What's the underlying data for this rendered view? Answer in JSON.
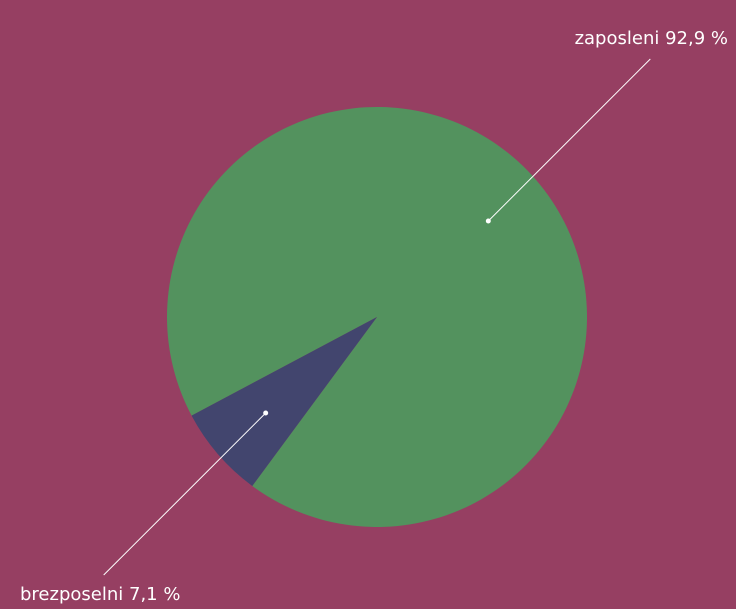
{
  "chart_data": {
    "type": "pie",
    "categories": [
      "zaposleni",
      "brezposelni"
    ],
    "values": [
      92.9,
      7.1
    ],
    "value_labels": [
      "92,9 %",
      "7,1 %"
    ],
    "colors": [
      "#53925e",
      "#42456e"
    ]
  }
}
